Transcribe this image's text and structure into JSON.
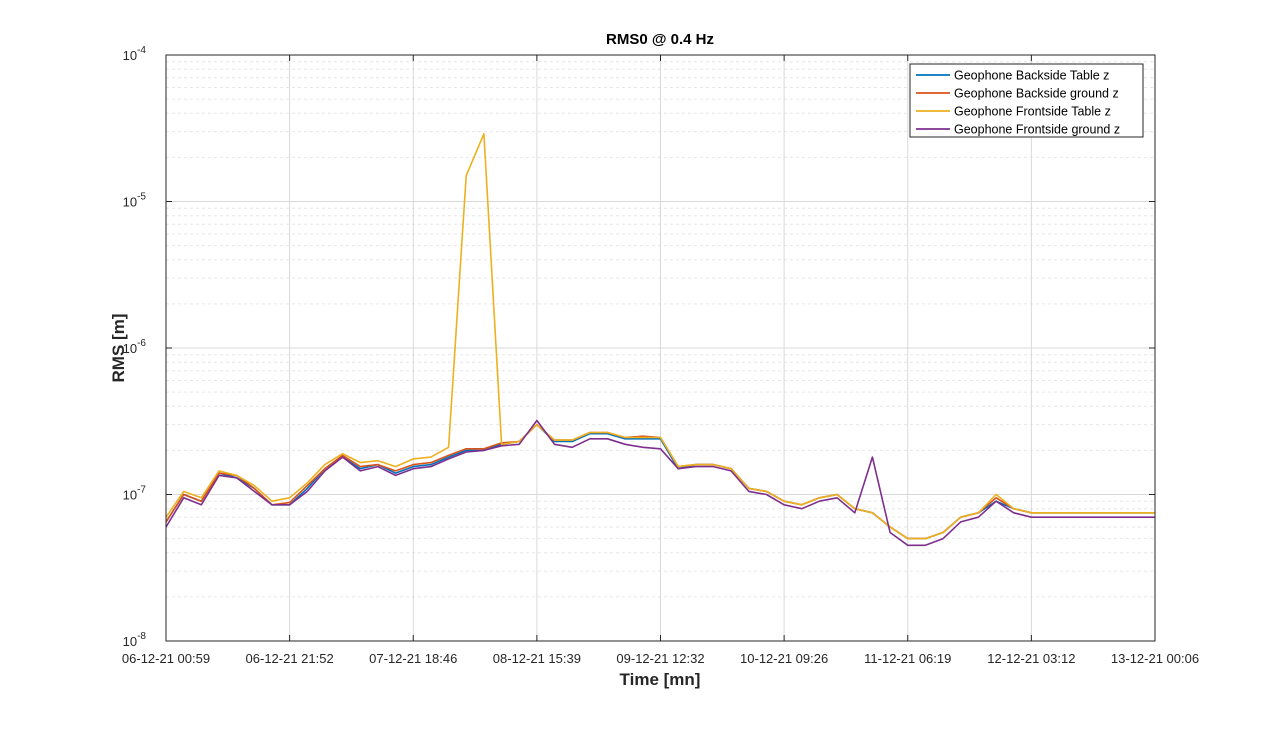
{
  "chart_data": {
    "type": "line",
    "title": "RMS0 @ 0.4 Hz",
    "xlabel": "Time [mn]",
    "ylabel": "RMS [m]",
    "yscale": "log",
    "ylim": [
      1e-08,
      0.0001
    ],
    "ytick_labels": [
      {
        "base": "10",
        "exp": "-8"
      },
      {
        "base": "10",
        "exp": "-7"
      },
      {
        "base": "10",
        "exp": "-6"
      },
      {
        "base": "10",
        "exp": "-5"
      },
      {
        "base": "10",
        "exp": "-4"
      }
    ],
    "xtick_labels": [
      "06-12-21 00:59",
      "06-12-21 21:52",
      "07-12-21 18:46",
      "08-12-21 15:39",
      "09-12-21 12:32",
      "10-12-21 09:26",
      "11-12-21 06:19",
      "12-12-21 03:12",
      "13-12-21 00:06"
    ],
    "x_hours": [
      0,
      3,
      6,
      9,
      12,
      15,
      18,
      21,
      24,
      27,
      30,
      33,
      36,
      39,
      42,
      45,
      48,
      51,
      54,
      57,
      60,
      63,
      66,
      69,
      72,
      75,
      78,
      81,
      84,
      87,
      90,
      93,
      96,
      99,
      102,
      105,
      108,
      111,
      114,
      117,
      120,
      123,
      126,
      129,
      132,
      135,
      138,
      141,
      144,
      147,
      150,
      153,
      156,
      159,
      162,
      165,
      168
    ],
    "grid": true,
    "minor_grid": true,
    "legend_position": "top-right",
    "series": [
      {
        "name": "Geophone Backside Table z",
        "color": "#0072BD",
        "values": [
          6.5e-08,
          1e-07,
          9e-08,
          1.4e-07,
          1.3e-07,
          1.1e-07,
          8.5e-08,
          8.5e-08,
          1.1e-07,
          1.5e-07,
          1.8e-07,
          1.5e-07,
          1.6e-07,
          1.4e-07,
          1.55e-07,
          1.6e-07,
          1.8e-07,
          2e-07,
          2e-07,
          2.2e-07,
          2.3e-07,
          3e-07,
          2.3e-07,
          2.3e-07,
          2.6e-07,
          2.6e-07,
          2.4e-07,
          2.4e-07,
          2.4e-07,
          1.5e-07,
          1.6e-07,
          1.6e-07,
          1.5e-07,
          1.1e-07,
          1.05e-07,
          9e-08,
          8.5e-08,
          9.5e-08,
          1e-07,
          8e-08,
          7.5e-08,
          6e-08,
          5e-08,
          5e-08,
          5.5e-08,
          7e-08,
          7.5e-08,
          9e-08,
          8e-08,
          7.5e-08,
          7.5e-08,
          7.5e-08,
          7.5e-08,
          7.5e-08,
          7.5e-08,
          7.5e-08,
          7.5e-08
        ]
      },
      {
        "name": "Geophone Backside ground z",
        "color": "#D95319",
        "values": [
          6.5e-08,
          1e-07,
          9e-08,
          1.4e-07,
          1.35e-07,
          1.1e-07,
          8.5e-08,
          8.8e-08,
          1.15e-07,
          1.5e-07,
          1.85e-07,
          1.55e-07,
          1.6e-07,
          1.45e-07,
          1.6e-07,
          1.65e-07,
          1.85e-07,
          2.05e-07,
          2.05e-07,
          2.25e-07,
          2.3e-07,
          3e-07,
          2.35e-07,
          2.35e-07,
          2.65e-07,
          2.65e-07,
          2.45e-07,
          2.5e-07,
          2.45e-07,
          1.55e-07,
          1.6e-07,
          1.6e-07,
          1.5e-07,
          1.1e-07,
          1.05e-07,
          9e-08,
          8.5e-08,
          9.5e-08,
          1e-07,
          8e-08,
          7.5e-08,
          6e-08,
          5e-08,
          5e-08,
          5.5e-08,
          7e-08,
          7.5e-08,
          9.5e-08,
          8e-08,
          7.5e-08,
          7.5e-08,
          7.5e-08,
          7.5e-08,
          7.5e-08,
          7.5e-08,
          7.5e-08,
          7.5e-08
        ]
      },
      {
        "name": "Geophone Frontside Table z",
        "color": "#EDB120",
        "values": [
          7e-08,
          1.05e-07,
          9.5e-08,
          1.45e-07,
          1.35e-07,
          1.15e-07,
          9e-08,
          9.5e-08,
          1.2e-07,
          1.6e-07,
          1.9e-07,
          1.65e-07,
          1.7e-07,
          1.55e-07,
          1.75e-07,
          1.8e-07,
          2.1e-07,
          1.5e-05,
          2.9e-05,
          2.2e-07,
          2.3e-07,
          3e-07,
          2.35e-07,
          2.35e-07,
          2.65e-07,
          2.65e-07,
          2.45e-07,
          2.45e-07,
          2.45e-07,
          1.55e-07,
          1.6e-07,
          1.6e-07,
          1.5e-07,
          1.1e-07,
          1.05e-07,
          9e-08,
          8.5e-08,
          9.5e-08,
          1e-07,
          8e-08,
          7.5e-08,
          6e-08,
          5e-08,
          5e-08,
          5.5e-08,
          7e-08,
          7.5e-08,
          1e-07,
          8e-08,
          7.5e-08,
          7.5e-08,
          7.5e-08,
          7.5e-08,
          7.5e-08,
          7.5e-08,
          7.5e-08,
          7.5e-08
        ]
      },
      {
        "name": "Geophone Frontside ground z",
        "color": "#7E2F8E",
        "values": [
          6e-08,
          9.5e-08,
          8.5e-08,
          1.35e-07,
          1.3e-07,
          1.05e-07,
          8.5e-08,
          8.5e-08,
          1.05e-07,
          1.45e-07,
          1.8e-07,
          1.45e-07,
          1.55e-07,
          1.35e-07,
          1.5e-07,
          1.55e-07,
          1.75e-07,
          1.95e-07,
          2e-07,
          2.15e-07,
          2.2e-07,
          3.2e-07,
          2.2e-07,
          2.1e-07,
          2.4e-07,
          2.4e-07,
          2.2e-07,
          2.1e-07,
          2.05e-07,
          1.5e-07,
          1.55e-07,
          1.55e-07,
          1.45e-07,
          1.05e-07,
          1e-07,
          8.5e-08,
          8e-08,
          9e-08,
          9.5e-08,
          7.5e-08,
          1.8e-07,
          5.5e-08,
          4.5e-08,
          4.5e-08,
          5e-08,
          6.5e-08,
          7e-08,
          9e-08,
          7.5e-08,
          7e-08,
          7e-08,
          7e-08,
          7e-08,
          7e-08,
          7e-08,
          7e-08,
          7e-08
        ]
      }
    ]
  }
}
